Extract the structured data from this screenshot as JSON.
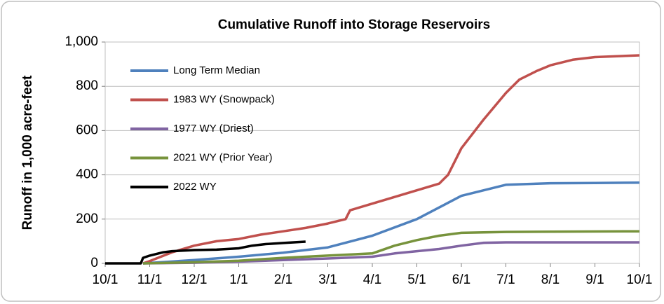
{
  "chart_data": {
    "type": "line",
    "title": "Cumulative Runoff into Storage Reservoirs",
    "y_label": "Runoff in 1,000 acre-feet",
    "xlim": [
      0,
      12
    ],
    "xticks": [
      {
        "value": 0,
        "label": "10/1"
      },
      {
        "value": 1,
        "label": "11/1"
      },
      {
        "value": 2,
        "label": "12/1"
      },
      {
        "value": 3,
        "label": "1/1"
      },
      {
        "value": 4,
        "label": "2/1"
      },
      {
        "value": 5,
        "label": "3/1"
      },
      {
        "value": 6,
        "label": "4/1"
      },
      {
        "value": 7,
        "label": "5/1"
      },
      {
        "value": 8,
        "label": "6/1"
      },
      {
        "value": 9,
        "label": "7/1"
      },
      {
        "value": 10,
        "label": "8/1"
      },
      {
        "value": 11,
        "label": "9/1"
      },
      {
        "value": 12,
        "label": "10/1"
      }
    ],
    "ylim": [
      0,
      1000
    ],
    "yticks": [
      0,
      200,
      400,
      600,
      800,
      {
        "value": 1000,
        "label": "1,000"
      }
    ],
    "grid": true,
    "legend": "upper left",
    "series": [
      {
        "name": "Long Term Median",
        "color": "#4f81bd",
        "x": [
          0.85,
          1,
          2,
          3,
          4,
          5,
          6,
          7,
          8,
          9,
          10,
          11,
          12
        ],
        "values": [
          0,
          2,
          15,
          30,
          48,
          72,
          125,
          200,
          305,
          355,
          362,
          363,
          365
        ]
      },
      {
        "name": "1983 WY (Snowpack)",
        "color": "#c0504d",
        "x": [
          0.85,
          1,
          1.5,
          2,
          2.5,
          3,
          3.5,
          4,
          4.5,
          5,
          5.4,
          5.5,
          6,
          6.5,
          7,
          7.5,
          7.7,
          8,
          8.5,
          9,
          9.3,
          9.7,
          10,
          10.5,
          11,
          12
        ],
        "values": [
          0,
          10,
          50,
          80,
          100,
          110,
          130,
          145,
          160,
          180,
          200,
          240,
          270,
          300,
          330,
          360,
          400,
          520,
          650,
          770,
          830,
          870,
          895,
          920,
          932,
          940
        ]
      },
      {
        "name": "1977 WY (Driest)",
        "color": "#8064a2",
        "x": [
          0.85,
          2,
          3,
          4,
          5,
          6,
          6.5,
          7,
          7.5,
          8,
          8.5,
          9,
          12
        ],
        "values": [
          0,
          3,
          8,
          15,
          22,
          30,
          45,
          55,
          65,
          80,
          93,
          95,
          95
        ]
      },
      {
        "name": "2021 WY (Prior Year)",
        "color": "#77933c",
        "x": [
          0.85,
          2,
          3,
          4,
          5,
          6,
          6.5,
          7,
          7.5,
          8,
          9,
          12
        ],
        "values": [
          0,
          5,
          12,
          25,
          35,
          45,
          80,
          105,
          125,
          138,
          142,
          145
        ]
      },
      {
        "name": "2022 WY",
        "color": "#000000",
        "x": [
          0,
          0.8,
          0.85,
          1,
          1.3,
          1.5,
          2,
          2.5,
          3,
          3.3,
          3.6,
          4,
          4.5
        ],
        "values": [
          0,
          0,
          25,
          35,
          50,
          55,
          60,
          62,
          68,
          80,
          87,
          92,
          98
        ]
      }
    ]
  }
}
